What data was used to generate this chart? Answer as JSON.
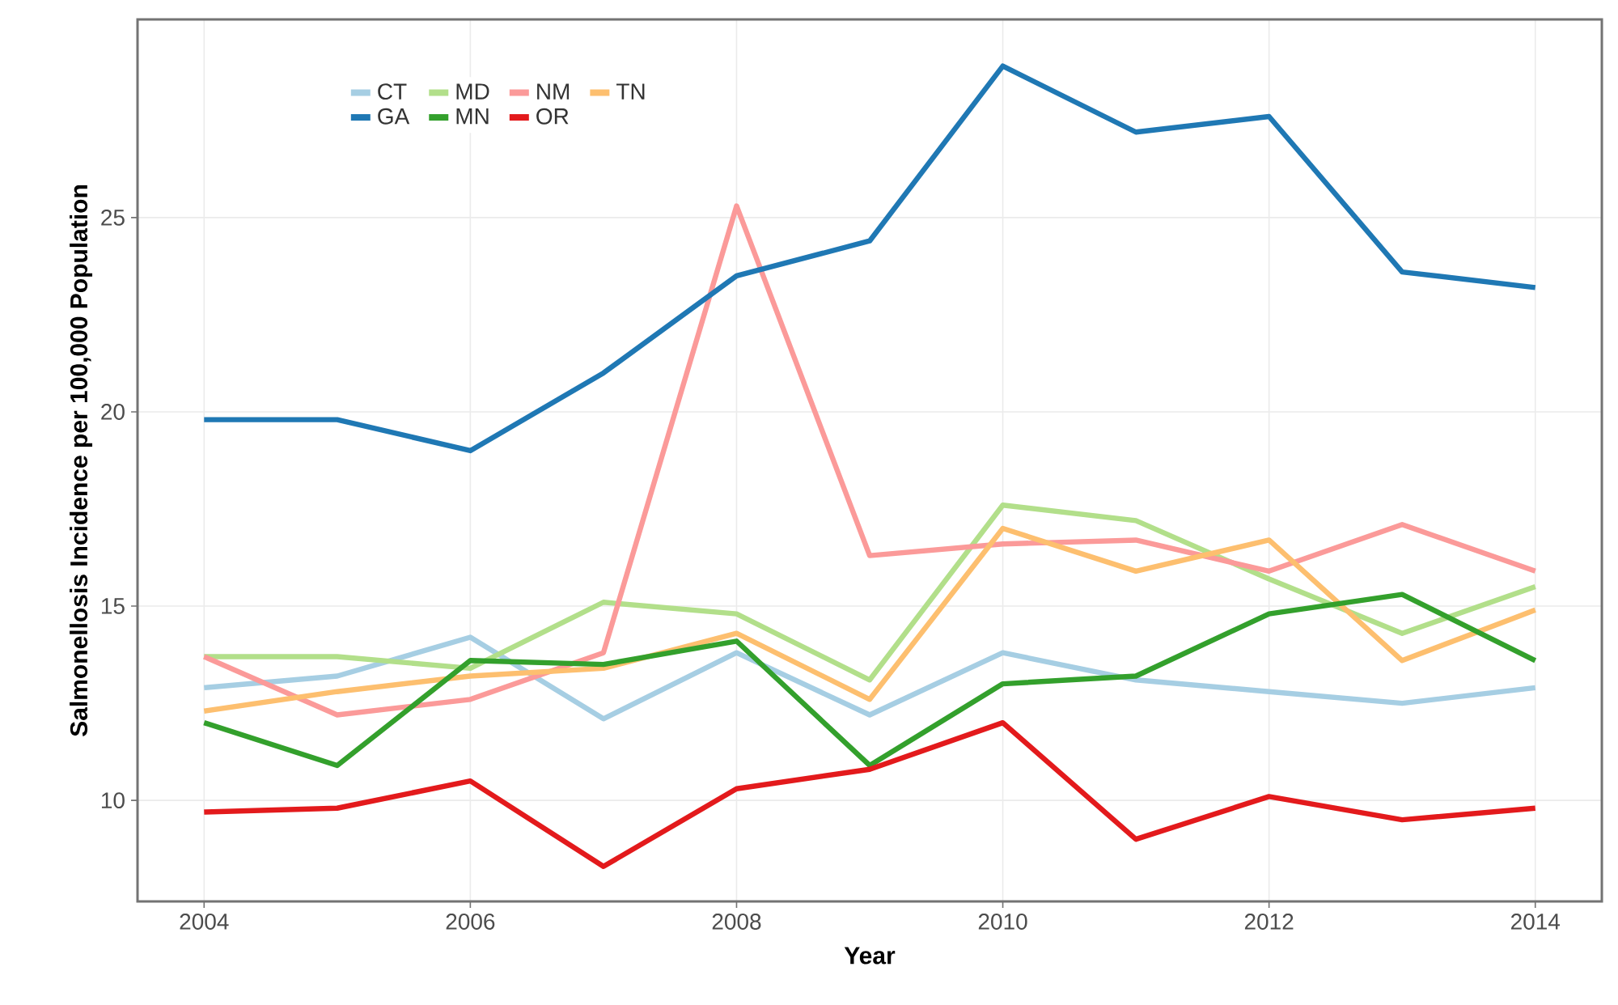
{
  "chart_data": {
    "type": "line",
    "xlabel": "Year",
    "ylabel": "Salmonellosis Incidence per 100,000 Population",
    "x": [
      2004,
      2005,
      2006,
      2007,
      2008,
      2009,
      2010,
      2011,
      2012,
      2013,
      2014
    ],
    "series": [
      {
        "name": "CT",
        "color": "#a6cee3",
        "values": [
          12.9,
          13.2,
          14.2,
          12.1,
          13.8,
          12.2,
          13.8,
          13.1,
          12.8,
          12.5,
          12.9
        ]
      },
      {
        "name": "GA",
        "color": "#1f78b4",
        "values": [
          19.8,
          19.8,
          19.0,
          21.0,
          23.5,
          24.4,
          28.9,
          27.2,
          27.6,
          23.6,
          23.2
        ]
      },
      {
        "name": "MD",
        "color": "#b2df8a",
        "values": [
          13.7,
          13.7,
          13.4,
          15.1,
          14.8,
          13.1,
          17.6,
          17.2,
          15.7,
          14.3,
          15.5
        ]
      },
      {
        "name": "MN",
        "color": "#33a02c",
        "values": [
          12.0,
          10.9,
          13.6,
          13.5,
          14.1,
          10.9,
          13.0,
          13.2,
          14.8,
          15.3,
          13.6
        ]
      },
      {
        "name": "NM",
        "color": "#fb9a99",
        "values": [
          13.7,
          12.2,
          12.6,
          13.8,
          25.3,
          16.3,
          16.6,
          16.7,
          15.9,
          17.1,
          15.9
        ]
      },
      {
        "name": "OR",
        "color": "#e31a1c",
        "values": [
          9.7,
          9.8,
          10.5,
          8.3,
          10.3,
          10.8,
          12.0,
          9.0,
          10.1,
          9.5,
          9.8
        ]
      },
      {
        "name": "TN",
        "color": "#fdbf6f",
        "values": [
          12.3,
          12.8,
          13.2,
          13.4,
          14.3,
          12.6,
          17.0,
          15.9,
          16.7,
          13.6,
          14.9
        ]
      }
    ],
    "xlim": [
      2003.5,
      2014.5
    ],
    "ylim": [
      7.4,
      30.1
    ],
    "xticks": [
      2004,
      2006,
      2008,
      2010,
      2012,
      2014
    ],
    "yticks": [
      10,
      15,
      20,
      25
    ],
    "grid": true,
    "legend": "top left"
  }
}
